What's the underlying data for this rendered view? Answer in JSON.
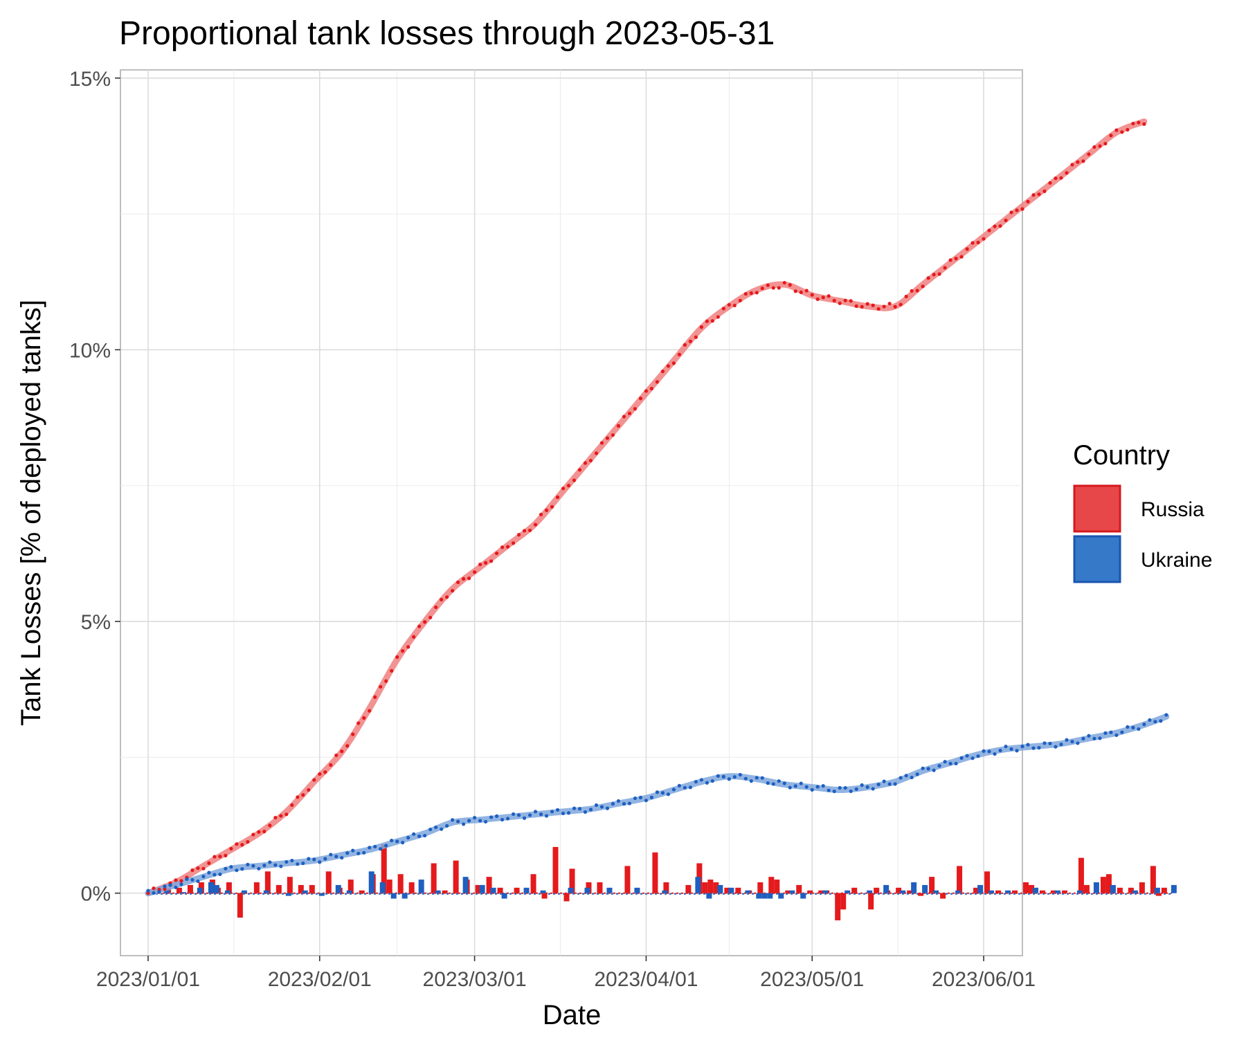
{
  "chart_data": {
    "type": "line",
    "title": "Proportional tank losses through 2023-05-31",
    "xlabel": "Date",
    "ylabel": "Tank Losses [% of deployed tanks]",
    "x_range": [
      "2022-12-27",
      "2023-06-08"
    ],
    "ylim": [
      -1.15,
      15.15
    ],
    "y_ticks": [
      0,
      5,
      10,
      15
    ],
    "y_tick_labels": [
      "0%",
      "5%",
      "10%",
      "15%"
    ],
    "x_ticks": [
      "2023-01-01",
      "2023-02-01",
      "2023-03-01",
      "2023-04-01",
      "2023-05-01",
      "2023-06-01"
    ],
    "x_tick_labels": [
      "2023/01/01",
      "2023/02/01",
      "2023/03/01",
      "2023/04/01",
      "2023/05/01",
      "2023/06/01"
    ],
    "grid": true,
    "legend": {
      "title": "Country",
      "position": "right",
      "entries": [
        {
          "label": "Russia",
          "color": "#e41a1c"
        },
        {
          "label": "Ukraine",
          "color": "#1f5fbf"
        }
      ]
    },
    "series": [
      {
        "name": "Russia",
        "color": "#e41a1c",
        "smooth_color": "#f08080",
        "cumulative_anchors": [
          [
            0,
            0
          ],
          [
            5,
            0.2
          ],
          [
            10,
            0.5
          ],
          [
            15,
            0.8
          ],
          [
            20,
            1.1
          ],
          [
            25,
            1.5
          ],
          [
            30,
            2.05
          ],
          [
            35,
            2.6
          ],
          [
            40,
            3.4
          ],
          [
            45,
            4.3
          ],
          [
            50,
            5.0
          ],
          [
            55,
            5.6
          ],
          [
            60,
            6.0
          ],
          [
            65,
            6.4
          ],
          [
            70,
            6.8
          ],
          [
            75,
            7.4
          ],
          [
            80,
            8.0
          ],
          [
            85,
            8.6
          ],
          [
            90,
            9.2
          ],
          [
            95,
            9.8
          ],
          [
            100,
            10.4
          ],
          [
            105,
            10.8
          ],
          [
            110,
            11.1
          ],
          [
            115,
            11.2
          ],
          [
            120,
            11.0
          ],
          [
            125,
            10.9
          ],
          [
            130,
            10.8
          ],
          [
            135,
            10.8
          ],
          [
            140,
            11.2
          ],
          [
            145,
            11.6
          ],
          [
            150,
            12.0
          ],
          [
            155,
            12.4
          ],
          [
            160,
            12.8
          ],
          [
            165,
            13.2
          ],
          [
            170,
            13.6
          ],
          [
            175,
            14.0
          ],
          [
            180,
            14.2
          ]
        ],
        "daily_changes": [
          [
            2,
            0.05
          ],
          [
            4,
            0.1
          ],
          [
            6,
            0.1
          ],
          [
            8,
            0.15
          ],
          [
            10,
            0.2
          ],
          [
            12,
            0.25
          ],
          [
            13,
            0.1
          ],
          [
            15,
            0.2
          ],
          [
            17,
            -0.45
          ],
          [
            20,
            0.2
          ],
          [
            22,
            0.4
          ],
          [
            24,
            0.15
          ],
          [
            26,
            0.3
          ],
          [
            28,
            0.15
          ],
          [
            30,
            0.15
          ],
          [
            33,
            0.4
          ],
          [
            35,
            0.1
          ],
          [
            37,
            0.25
          ],
          [
            39,
            0.05
          ],
          [
            41,
            0.35
          ],
          [
            43,
            0.9
          ],
          [
            44,
            0.25
          ],
          [
            46,
            0.35
          ],
          [
            48,
            0.2
          ],
          [
            52,
            0.55
          ],
          [
            54,
            0.05
          ],
          [
            56,
            0.6
          ],
          [
            58,
            0.25
          ],
          [
            60,
            0.15
          ],
          [
            62,
            0.3
          ],
          [
            64,
            0.1
          ],
          [
            67,
            0.1
          ],
          [
            70,
            0.35
          ],
          [
            72,
            -0.1
          ],
          [
            74,
            0.85
          ],
          [
            76,
            -0.15
          ],
          [
            77,
            0.45
          ],
          [
            80,
            0.2
          ],
          [
            82,
            0.2
          ],
          [
            87,
            0.5
          ],
          [
            92,
            0.75
          ],
          [
            94,
            0.2
          ],
          [
            98,
            0.15
          ],
          [
            100,
            0.55
          ],
          [
            101,
            0.2
          ],
          [
            102,
            0.25
          ],
          [
            103,
            0.2
          ],
          [
            105,
            0.1
          ],
          [
            107,
            0.1
          ],
          [
            109,
            0.05
          ],
          [
            111,
            0.2
          ],
          [
            113,
            0.3
          ],
          [
            114,
            0.25
          ],
          [
            116,
            0.05
          ],
          [
            118,
            0.15
          ],
          [
            120,
            0.05
          ],
          [
            122,
            0.05
          ],
          [
            123,
            0.05
          ],
          [
            125,
            -0.5
          ],
          [
            126,
            -0.3
          ],
          [
            128,
            0.1
          ],
          [
            131,
            -0.3
          ],
          [
            132,
            0.1
          ],
          [
            134,
            0.05
          ],
          [
            136,
            0.1
          ],
          [
            138,
            0.05
          ],
          [
            140,
            -0.05
          ],
          [
            142,
            0.3
          ],
          [
            144,
            -0.1
          ],
          [
            147,
            0.5
          ],
          [
            150,
            0.1
          ],
          [
            152,
            0.4
          ],
          [
            154,
            0.05
          ],
          [
            157,
            0.05
          ],
          [
            159,
            0.2
          ],
          [
            160,
            0.15
          ],
          [
            162,
            0.05
          ],
          [
            164,
            0.05
          ],
          [
            166,
            0.05
          ],
          [
            169,
            0.65
          ],
          [
            170,
            0.15
          ],
          [
            173,
            0.3
          ],
          [
            174,
            0.35
          ],
          [
            176,
            0.1
          ],
          [
            178,
            0.1
          ],
          [
            180,
            0.2
          ],
          [
            182,
            0.5
          ],
          [
            183,
            -0.05
          ],
          [
            184,
            0.1
          ]
        ]
      },
      {
        "name": "Ukraine",
        "color": "#1f5fbf",
        "smooth_color": "#7fa7dd",
        "cumulative_anchors": [
          [
            0,
            0
          ],
          [
            5,
            0.15
          ],
          [
            10,
            0.3
          ],
          [
            15,
            0.45
          ],
          [
            20,
            0.5
          ],
          [
            25,
            0.55
          ],
          [
            30,
            0.6
          ],
          [
            35,
            0.7
          ],
          [
            40,
            0.8
          ],
          [
            45,
            0.95
          ],
          [
            50,
            1.1
          ],
          [
            55,
            1.3
          ],
          [
            60,
            1.35
          ],
          [
            65,
            1.4
          ],
          [
            70,
            1.45
          ],
          [
            75,
            1.5
          ],
          [
            80,
            1.55
          ],
          [
            85,
            1.65
          ],
          [
            90,
            1.75
          ],
          [
            95,
            1.9
          ],
          [
            100,
            2.05
          ],
          [
            105,
            2.15
          ],
          [
            110,
            2.1
          ],
          [
            115,
            2.0
          ],
          [
            120,
            1.95
          ],
          [
            125,
            1.9
          ],
          [
            130,
            1.95
          ],
          [
            135,
            2.05
          ],
          [
            140,
            2.25
          ],
          [
            145,
            2.4
          ],
          [
            150,
            2.55
          ],
          [
            155,
            2.65
          ],
          [
            160,
            2.7
          ],
          [
            165,
            2.75
          ],
          [
            170,
            2.85
          ],
          [
            175,
            2.95
          ],
          [
            180,
            3.1
          ],
          [
            184,
            3.25
          ]
        ],
        "daily_changes": [
          [
            1,
            0.02
          ],
          [
            3,
            0.05
          ],
          [
            6,
            0.02
          ],
          [
            9,
            0.1
          ],
          [
            11,
            0.2
          ],
          [
            12,
            0.15
          ],
          [
            14,
            0.05
          ],
          [
            17,
            0.05
          ],
          [
            21,
            0.05
          ],
          [
            25,
            -0.05
          ],
          [
            28,
            0.05
          ],
          [
            31,
            -0.05
          ],
          [
            34,
            0.15
          ],
          [
            36,
            0.05
          ],
          [
            40,
            0.4
          ],
          [
            42,
            0.2
          ],
          [
            44,
            -0.1
          ],
          [
            46,
            -0.1
          ],
          [
            49,
            0.25
          ],
          [
            52,
            0.05
          ],
          [
            57,
            0.3
          ],
          [
            60,
            0.15
          ],
          [
            62,
            0.1
          ],
          [
            64,
            -0.1
          ],
          [
            68,
            0.1
          ],
          [
            71,
            0.05
          ],
          [
            76,
            0.1
          ],
          [
            79,
            0.1
          ],
          [
            83,
            0.1
          ],
          [
            88,
            0.1
          ],
          [
            93,
            0.05
          ],
          [
            99,
            0.3
          ],
          [
            101,
            -0.1
          ],
          [
            103,
            0.15
          ],
          [
            105,
            0.1
          ],
          [
            108,
            0.05
          ],
          [
            110,
            -0.1
          ],
          [
            111,
            -0.1
          ],
          [
            112,
            -0.1
          ],
          [
            114,
            -0.1
          ],
          [
            116,
            0.05
          ],
          [
            118,
            -0.1
          ],
          [
            122,
            0.05
          ],
          [
            126,
            0.05
          ],
          [
            130,
            0.05
          ],
          [
            133,
            0.15
          ],
          [
            136,
            0.05
          ],
          [
            138,
            0.2
          ],
          [
            140,
            0.15
          ],
          [
            142,
            0.05
          ],
          [
            146,
            0.05
          ],
          [
            150,
            0.15
          ],
          [
            152,
            0.05
          ],
          [
            155,
            0.05
          ],
          [
            160,
            0.1
          ],
          [
            164,
            0.05
          ],
          [
            168,
            0.05
          ],
          [
            171,
            0.2
          ],
          [
            174,
            0.15
          ],
          [
            178,
            0.05
          ],
          [
            182,
            0.1
          ],
          [
            185,
            0.15
          ]
        ]
      }
    ]
  }
}
